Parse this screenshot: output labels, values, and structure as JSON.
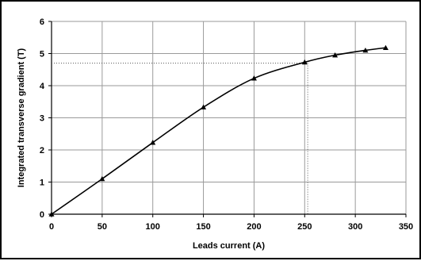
{
  "chart_data": {
    "type": "line",
    "title": "",
    "xlabel": "Leads current (A)",
    "ylabel": "Integrated transverse gradient (T)",
    "xlim": [
      0,
      350
    ],
    "ylim": [
      0,
      6
    ],
    "x_ticks": [
      0,
      50,
      100,
      150,
      200,
      250,
      300,
      350
    ],
    "y_ticks": [
      0,
      1,
      2,
      3,
      4,
      5,
      6
    ],
    "grid": true,
    "legend": "none",
    "series": [
      {
        "x": [
          0,
          50,
          100,
          150,
          200,
          250,
          280,
          310,
          330
        ],
        "y": [
          0,
          1.1,
          2.23,
          3.33,
          4.23,
          4.73,
          4.95,
          5.1,
          5.18
        ],
        "color": "#000000",
        "marker": "triangle"
      }
    ],
    "reference_lines": [
      {
        "orientation": "horizontal",
        "y": 4.7,
        "style": "dotted"
      },
      {
        "orientation": "vertical",
        "x": 253,
        "style": "dotted"
      }
    ]
  }
}
